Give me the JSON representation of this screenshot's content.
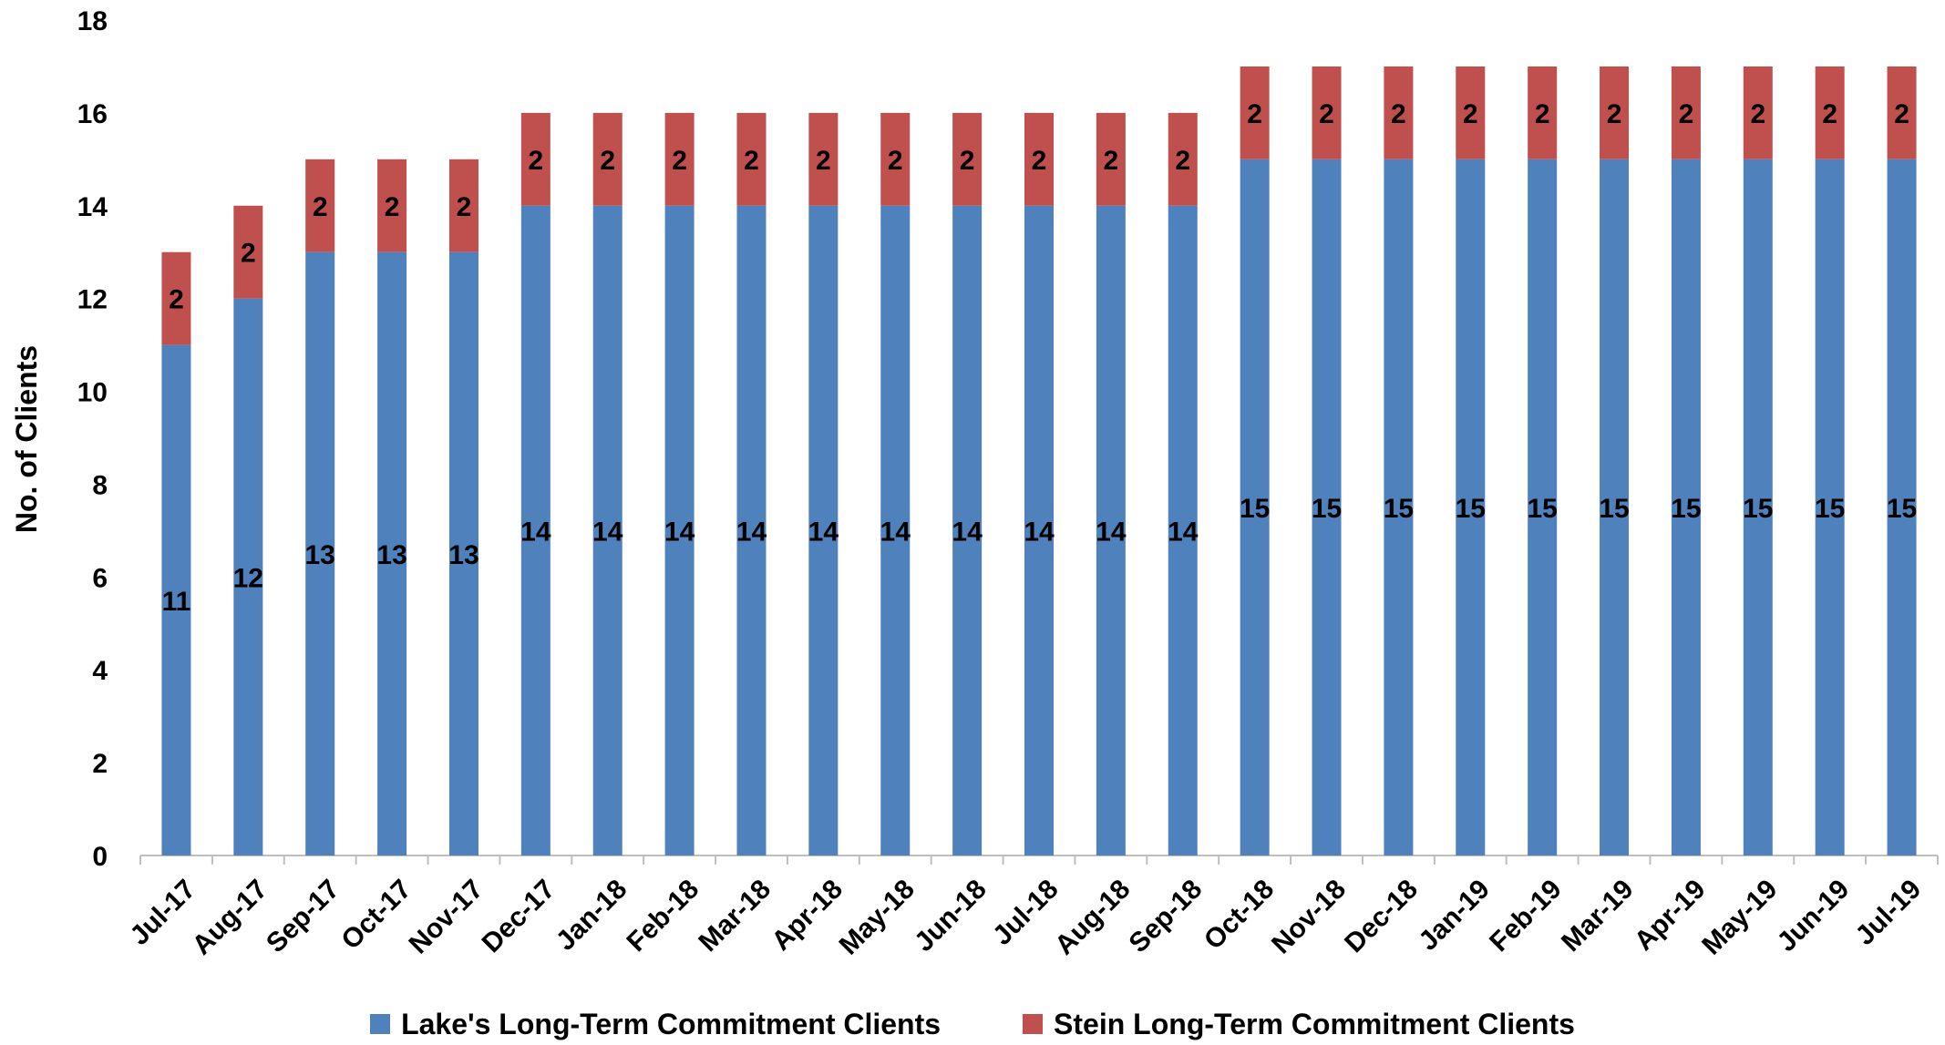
{
  "chart_data": {
    "type": "bar",
    "stacked": true,
    "title": "",
    "xlabel": "",
    "ylabel": "No. of Clients",
    "ylim": [
      0,
      18
    ],
    "y_ticks": [
      0,
      2,
      4,
      6,
      8,
      10,
      12,
      14,
      16,
      18
    ],
    "grid": false,
    "legend_position": "bottom",
    "categories": [
      "Jul-17",
      "Aug-17",
      "Sep-17",
      "Oct-17",
      "Nov-17",
      "Dec-17",
      "Jan-18",
      "Feb-18",
      "Mar-18",
      "Apr-18",
      "May-18",
      "Jun-18",
      "Jul-18",
      "Aug-18",
      "Sep-18",
      "Oct-18",
      "Nov-18",
      "Dec-18",
      "Jan-19",
      "Feb-19",
      "Mar-19",
      "Apr-19",
      "May-19",
      "Jun-19",
      "Jul-19"
    ],
    "series": [
      {
        "name": "Lake's Long-Term Commitment Clients",
        "color": "#4f81bd",
        "values": [
          11,
          12,
          13,
          13,
          13,
          14,
          14,
          14,
          14,
          14,
          14,
          14,
          14,
          14,
          14,
          15,
          15,
          15,
          15,
          15,
          15,
          15,
          15,
          15,
          15
        ]
      },
      {
        "name": "Stein Long-Term Commitment Clients",
        "color": "#c0504d",
        "values": [
          2,
          2,
          2,
          2,
          2,
          2,
          2,
          2,
          2,
          2,
          2,
          2,
          2,
          2,
          2,
          2,
          2,
          2,
          2,
          2,
          2,
          2,
          2,
          2,
          2
        ]
      }
    ]
  }
}
